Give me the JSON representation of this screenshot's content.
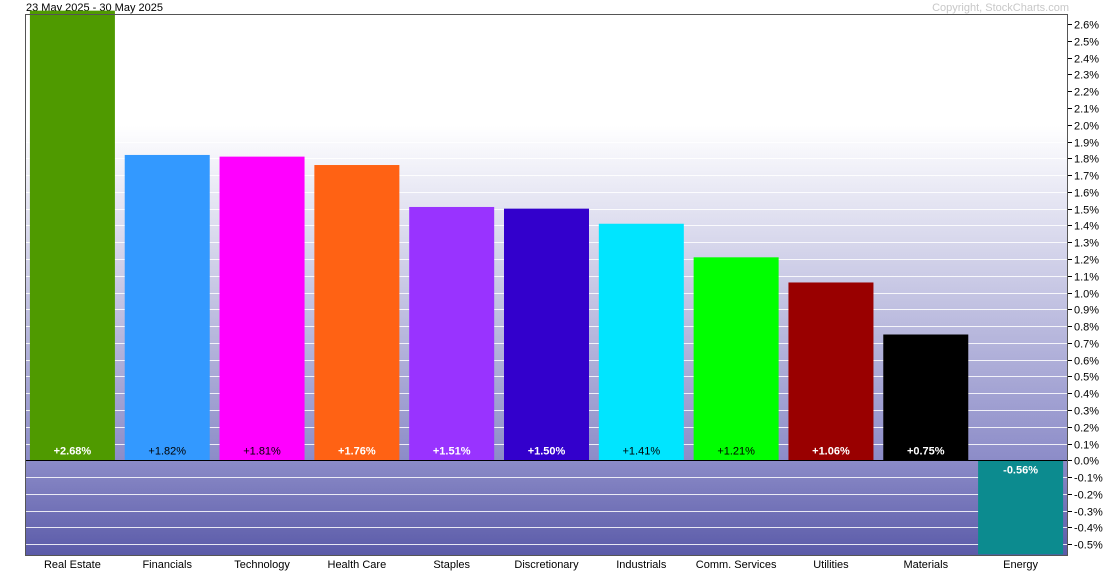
{
  "header": {
    "date_range": "23 May 2025 - 30 May 2025",
    "copyright": "Copyright, StockCharts.com"
  },
  "chart_data": {
    "type": "bar",
    "categories": [
      "Real Estate",
      "Financials",
      "Technology",
      "Health Care",
      "Staples",
      "Discretionary",
      "Industrials",
      "Comm. Services",
      "Utilities",
      "Materials",
      "Energy"
    ],
    "values": [
      2.68,
      1.82,
      1.81,
      1.76,
      1.51,
      1.5,
      1.41,
      1.21,
      1.06,
      0.75,
      -0.56
    ],
    "data_labels": [
      "+2.68%",
      "+1.82%",
      "+1.81%",
      "+1.76%",
      "+1.51%",
      "+1.50%",
      "+1.41%",
      "+1.21%",
      "+1.06%",
      "+0.75%",
      "-0.56%"
    ],
    "colors": [
      "#4f9a00",
      "#3399ff",
      "#ff00ff",
      "#ff6214",
      "#9933ff",
      "#3300cc",
      "#00e5ff",
      "#00ff00",
      "#990000",
      "#000000",
      "#0c8b8f"
    ],
    "label_colors": [
      "#ffffff",
      "#000000",
      "#000000",
      "#ffffff",
      "#ffffff",
      "#ffffff",
      "#000000",
      "#000000",
      "#ffffff",
      "#ffffff",
      "#ffffff"
    ],
    "ylim": [
      -0.57,
      2.66
    ],
    "yticks": [
      "2.6%",
      "2.5%",
      "2.4%",
      "2.3%",
      "2.2%",
      "2.1%",
      "2.0%",
      "1.9%",
      "1.8%",
      "1.7%",
      "1.6%",
      "1.5%",
      "1.4%",
      "1.3%",
      "1.2%",
      "1.1%",
      "1.0%",
      "0.9%",
      "0.8%",
      "0.7%",
      "0.6%",
      "0.5%",
      "0.4%",
      "0.3%",
      "0.2%",
      "0.1%",
      "0.0%",
      "-0.1%",
      "-0.2%",
      "-0.3%",
      "-0.4%",
      "-0.5%"
    ],
    "ytick_values": [
      2.6,
      2.5,
      2.4,
      2.3,
      2.2,
      2.1,
      2.0,
      1.9,
      1.8,
      1.7,
      1.6,
      1.5,
      1.4,
      1.3,
      1.2,
      1.1,
      1.0,
      0.9,
      0.8,
      0.7,
      0.6,
      0.5,
      0.4,
      0.3,
      0.2,
      0.1,
      0.0,
      -0.1,
      -0.2,
      -0.3,
      -0.4,
      -0.5
    ],
    "y_axis_side": "right",
    "grid": true,
    "background_colors": {
      "top": "#ffffff",
      "zero": "#8c8cc8",
      "negative": "#5a5aa8"
    }
  }
}
